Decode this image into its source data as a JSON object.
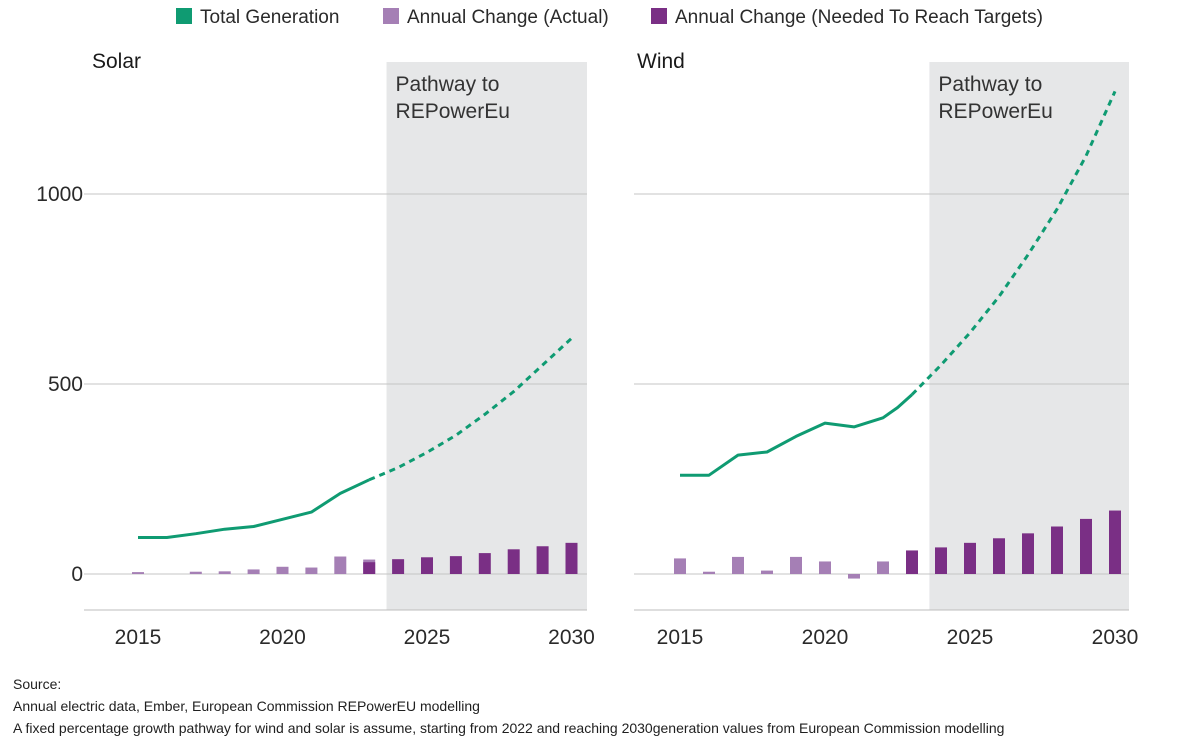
{
  "legend": [
    {
      "label": "Total Generation",
      "color": "#0f9b72"
    },
    {
      "label": "Annual Change (Actual)",
      "color": "#a57fb5"
    },
    {
      "label": "Annual Change (Needed To Reach Targets)",
      "color": "#7a2f85"
    }
  ],
  "source": {
    "heading": "Source:",
    "line1": "Annual electric data, Ember, European Commission REPowerEU modelling",
    "line2": "A fixed percentage growth pathway for wind and solar is assume, starting from 2022 and reaching 2030generation values from European Commission modelling"
  },
  "chart_data": [
    {
      "type": "line+bar",
      "title": "Solar",
      "shaded_region": {
        "from": 2023.6,
        "to": 2030.6,
        "label_line1": "Pathway to",
        "label_line2": "REPowerEu",
        "color": "#e6e7e8"
      },
      "x_ticks": [
        "2015",
        "2020",
        "2025",
        "2030"
      ],
      "y_ticks": [
        "0",
        "500",
        "1000"
      ],
      "ylim": [
        -95,
        1340
      ],
      "xlim": [
        2014.2,
        2030.6
      ],
      "grid": true,
      "series": [
        {
          "name": "Total Generation",
          "kind": "line",
          "style": "solid",
          "color": "#0f9b72",
          "x": [
            2015,
            2016,
            2017,
            2018,
            2019,
            2020,
            2021,
            2022,
            2023
          ],
          "y": [
            96,
            96,
            106,
            118,
            125,
            144,
            163,
            212,
            248
          ]
        },
        {
          "name": "Total Generation",
          "kind": "line",
          "style": "dashed",
          "color": "#0f9b72",
          "x": [
            2023,
            2024,
            2025,
            2026,
            2027,
            2028,
            2029,
            2030
          ],
          "y": [
            248,
            280,
            320,
            365,
            420,
            480,
            550,
            620
          ]
        },
        {
          "name": "Annual Change (Actual)",
          "kind": "bar",
          "color": "#a57fb5",
          "x": [
            2015,
            2016,
            2017,
            2018,
            2019,
            2020,
            2021,
            2022,
            2023
          ],
          "y": [
            5,
            0,
            6,
            7,
            12,
            19,
            17,
            46,
            38
          ]
        },
        {
          "name": "Annual Change (Needed To Reach Targets)",
          "kind": "bar",
          "color": "#7a2f85",
          "x": [
            2023,
            2024,
            2025,
            2026,
            2027,
            2028,
            2029,
            2030
          ],
          "y": [
            31,
            39,
            44,
            47,
            55,
            65,
            73,
            82
          ]
        }
      ]
    },
    {
      "type": "line+bar",
      "title": "Wind",
      "shaded_region": {
        "from": 2023.6,
        "to": 2030.6,
        "label_line1": "Pathway to",
        "label_line2": "REPowerEu",
        "color": "#e6e7e8"
      },
      "x_ticks": [
        "2015",
        "2020",
        "2025",
        "2030"
      ],
      "y_ticks": [
        "0",
        "500",
        "1000"
      ],
      "ylim": [
        -95,
        1340
      ],
      "xlim": [
        2014.2,
        2030.6
      ],
      "grid": true,
      "series": [
        {
          "name": "Total Generation",
          "kind": "line",
          "style": "solid",
          "color": "#0f9b72",
          "x": [
            2015,
            2016,
            2017,
            2018,
            2019,
            2020,
            2021,
            2022,
            2022.5,
            2023
          ],
          "y": [
            260,
            260,
            313,
            321,
            362,
            397,
            387,
            411,
            438,
            472
          ]
        },
        {
          "name": "Total Generation",
          "kind": "line",
          "style": "dashed",
          "color": "#0f9b72",
          "x": [
            2023,
            2024,
            2025,
            2026,
            2027,
            2028,
            2029,
            2030
          ],
          "y": [
            472,
            550,
            635,
            730,
            840,
            960,
            1100,
            1270
          ]
        },
        {
          "name": "Annual Change (Actual)",
          "kind": "bar",
          "color": "#a57fb5",
          "x": [
            2015,
            2016,
            2017,
            2018,
            2019,
            2020,
            2021,
            2022,
            2023
          ],
          "y": [
            41,
            6,
            45,
            9,
            45,
            33,
            -12,
            33,
            55
          ]
        },
        {
          "name": "Annual Change (Needed To Reach Targets)",
          "kind": "bar",
          "color": "#7a2f85",
          "x": [
            2023,
            2024,
            2025,
            2026,
            2027,
            2028,
            2029,
            2030
          ],
          "y": [
            62,
            70,
            82,
            94,
            107,
            125,
            145,
            167
          ]
        }
      ]
    }
  ]
}
